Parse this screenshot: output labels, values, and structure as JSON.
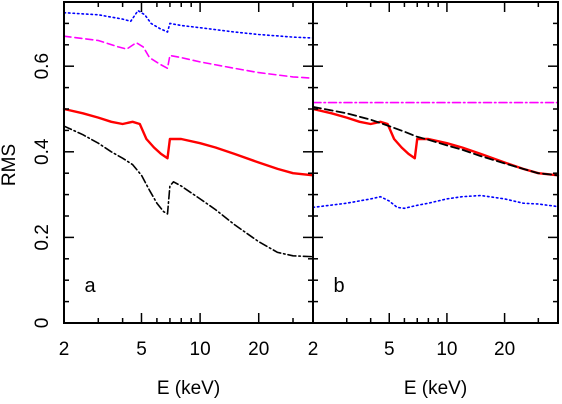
{
  "chart_data": [
    {
      "panel": "a",
      "type": "line",
      "xscale": "log",
      "xlim": [
        2,
        38
      ],
      "ylim": [
        0,
        0.75
      ],
      "xlabel": "E (keV)",
      "ylabel": "RMS",
      "xticks": [
        2,
        5,
        10,
        20
      ],
      "xtick_labels": [
        "2",
        "5",
        "10",
        "20"
      ],
      "yticks": [
        0,
        0.2,
        0.4,
        0.6
      ],
      "ytick_labels": [
        "0",
        "0.2",
        "0.4",
        "0.6"
      ],
      "series": [
        {
          "color": "#0000ff",
          "dash": "1.5 3",
          "width": 1.6,
          "x": [
            2,
            3,
            4,
            4.4,
            4.8,
            5.2,
            5.6,
            6.2,
            6.8,
            7.0,
            8,
            10,
            15,
            20,
            30,
            38
          ],
          "y": [
            0.725,
            0.72,
            0.71,
            0.705,
            0.73,
            0.72,
            0.7,
            0.688,
            0.68,
            0.7,
            0.695,
            0.69,
            0.68,
            0.674,
            0.668,
            0.666
          ]
        },
        {
          "color": "#ff00ff",
          "dash": "7 4",
          "width": 1.6,
          "x": [
            2,
            3,
            3.8,
            4.2,
            4.7,
            5.1,
            5.5,
            6.2,
            6.8,
            7.0,
            8,
            10,
            15,
            20,
            30,
            38
          ],
          "y": [
            0.67,
            0.66,
            0.645,
            0.64,
            0.655,
            0.645,
            0.62,
            0.605,
            0.595,
            0.625,
            0.62,
            0.61,
            0.595,
            0.585,
            0.575,
            0.572
          ]
        },
        {
          "color": "#ff0000",
          "dash": "",
          "width": 2.4,
          "x": [
            2,
            2.5,
            3,
            3.5,
            4,
            4.5,
            4.9,
            5.3,
            5.8,
            6.3,
            6.8,
            7.0,
            8,
            10,
            12,
            15,
            20,
            25,
            30,
            38
          ],
          "y": [
            0.5,
            0.49,
            0.48,
            0.47,
            0.465,
            0.47,
            0.465,
            0.43,
            0.41,
            0.395,
            0.385,
            0.43,
            0.43,
            0.42,
            0.41,
            0.395,
            0.375,
            0.36,
            0.35,
            0.345
          ]
        },
        {
          "color": "#000000",
          "dash": "8 3 1.5 3",
          "width": 1.6,
          "x": [
            2,
            2.5,
            3,
            3.5,
            4,
            4.5,
            5,
            5.5,
            6,
            6.5,
            6.8,
            7.0,
            7.3,
            8,
            10,
            12,
            15,
            20,
            25,
            30,
            38
          ],
          "y": [
            0.46,
            0.44,
            0.42,
            0.4,
            0.385,
            0.37,
            0.345,
            0.31,
            0.28,
            0.26,
            0.255,
            0.32,
            0.33,
            0.32,
            0.29,
            0.265,
            0.23,
            0.19,
            0.165,
            0.157,
            0.155
          ]
        }
      ]
    },
    {
      "panel": "b",
      "type": "line",
      "xscale": "log",
      "xlim": [
        2,
        38
      ],
      "ylim": [
        0,
        0.75
      ],
      "xlabel": "E (keV)",
      "xticks": [
        2,
        5,
        10,
        20
      ],
      "xtick_labels": [
        "2",
        "5",
        "10",
        "20"
      ],
      "yticks": [
        0,
        0.2,
        0.4,
        0.6
      ],
      "series": [
        {
          "color": "#ff00ff",
          "dash": "8 3 1.5 3",
          "width": 1.6,
          "x": [
            2,
            38
          ],
          "y": [
            0.515,
            0.515
          ]
        },
        {
          "color": "#ff0000",
          "dash": "",
          "width": 2.4,
          "x": [
            2,
            2.5,
            3,
            3.5,
            4,
            4.5,
            4.9,
            5.3,
            5.8,
            6.3,
            6.8,
            7.0,
            8,
            10,
            12,
            15,
            20,
            25,
            30,
            38
          ],
          "y": [
            0.5,
            0.49,
            0.48,
            0.47,
            0.465,
            0.47,
            0.465,
            0.43,
            0.41,
            0.395,
            0.385,
            0.43,
            0.43,
            0.42,
            0.41,
            0.395,
            0.375,
            0.36,
            0.35,
            0.345
          ]
        },
        {
          "color": "#000000",
          "dash": "8 4",
          "width": 1.8,
          "x": [
            2,
            3,
            4,
            5,
            6,
            7,
            8,
            10,
            12,
            15,
            20,
            25,
            30,
            38
          ],
          "y": [
            0.505,
            0.49,
            0.475,
            0.46,
            0.447,
            0.435,
            0.428,
            0.415,
            0.405,
            0.39,
            0.373,
            0.36,
            0.35,
            0.345
          ]
        },
        {
          "color": "#0000ff",
          "dash": "1.5 3",
          "width": 1.6,
          "x": [
            2,
            3,
            4,
            4.5,
            5,
            5.5,
            6,
            7,
            8,
            10,
            12,
            15,
            20,
            25,
            30,
            38
          ],
          "y": [
            0.27,
            0.28,
            0.29,
            0.295,
            0.285,
            0.27,
            0.268,
            0.275,
            0.28,
            0.29,
            0.295,
            0.298,
            0.29,
            0.28,
            0.278,
            0.272
          ]
        }
      ]
    }
  ]
}
